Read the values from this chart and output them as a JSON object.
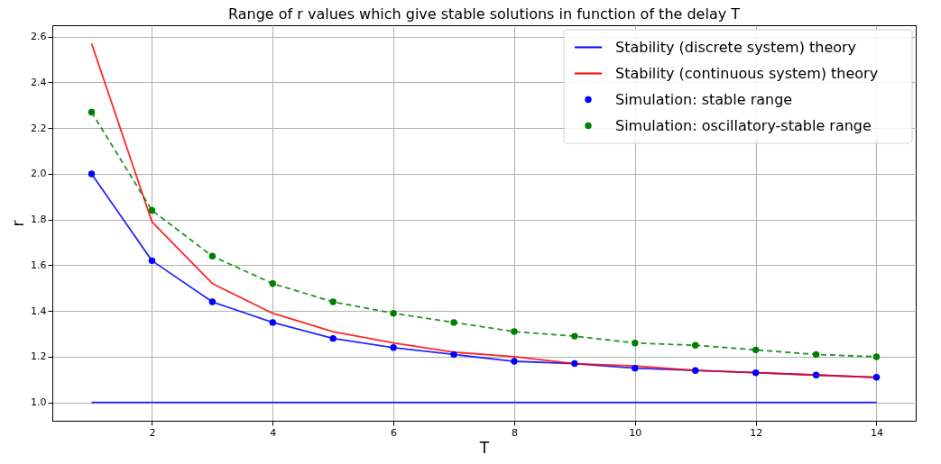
{
  "chart_data": {
    "type": "line",
    "title": "Range of r values which give stable solutions in function of the delay T",
    "xlabel": "T",
    "ylabel": "r",
    "x": [
      1,
      2,
      3,
      4,
      5,
      6,
      7,
      8,
      9,
      10,
      11,
      12,
      13,
      14
    ],
    "series": [
      {
        "name": "Stability (discrete system) theory",
        "type": "line",
        "color": "#0000ff",
        "values": [
          2.0,
          1.62,
          1.44,
          1.35,
          1.28,
          1.24,
          1.21,
          1.18,
          1.17,
          1.15,
          1.14,
          1.13,
          1.12,
          1.11
        ]
      },
      {
        "name": "Stability (continuous system) theory",
        "type": "line",
        "color": "#ff0000",
        "values": [
          2.57,
          1.79,
          1.52,
          1.39,
          1.31,
          1.26,
          1.22,
          1.2,
          1.17,
          1.16,
          1.14,
          1.13,
          1.12,
          1.11
        ]
      },
      {
        "type": "line",
        "color": "#0000ff",
        "values": [
          1.0,
          1.0,
          1.0,
          1.0,
          1.0,
          1.0,
          1.0,
          1.0,
          1.0,
          1.0,
          1.0,
          1.0,
          1.0,
          1.0
        ]
      },
      {
        "name": "Simulation: stable range",
        "type": "scatter",
        "marker": "circle",
        "color": "#0000ff",
        "values": [
          2.0,
          1.62,
          1.44,
          1.35,
          1.28,
          1.24,
          1.21,
          1.18,
          1.17,
          1.15,
          1.14,
          1.13,
          1.12,
          1.11
        ]
      },
      {
        "name": "Simulation: oscillatory-stable range",
        "type": "line",
        "marker": "circle",
        "line_style": "dashed",
        "color": "#008000",
        "values": [
          2.27,
          1.84,
          1.64,
          1.52,
          1.44,
          1.39,
          1.35,
          1.31,
          1.29,
          1.26,
          1.25,
          1.23,
          1.21,
          1.2
        ]
      }
    ],
    "xlim": [
      0.35,
      14.65
    ],
    "xticks": [
      2,
      4,
      6,
      8,
      10,
      12,
      14
    ],
    "ylim": [
      0.92,
      2.65
    ],
    "yticks": [
      {
        "value": 1.0,
        "label": "1.0"
      },
      {
        "value": 1.2,
        "label": "1.2"
      },
      {
        "value": 1.4,
        "label": "1.4"
      },
      {
        "value": 1.6,
        "label": "1.6"
      },
      {
        "value": 1.8,
        "label": "1.8"
      },
      {
        "value": 2.0,
        "label": "2.0"
      },
      {
        "value": 2.2,
        "label": "2.2"
      },
      {
        "value": 2.4,
        "label": "2.4"
      },
      {
        "value": 2.6,
        "label": "2.6"
      }
    ],
    "grid": true,
    "legend": "top right"
  }
}
